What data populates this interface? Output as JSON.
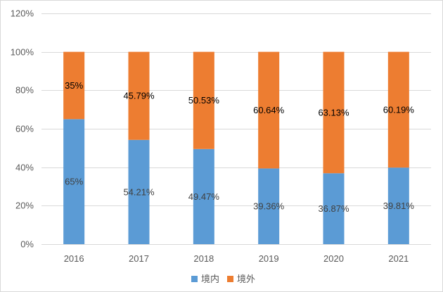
{
  "chart_data": {
    "type": "bar",
    "stacked": true,
    "title": "",
    "xlabel": "",
    "ylabel": "",
    "categories": [
      "2016",
      "2017",
      "2018",
      "2019",
      "2020",
      "2021"
    ],
    "series": [
      {
        "name": "境内",
        "color": "#5b9bd5",
        "label_color": "#404040",
        "values": [
          65,
          54.21,
          49.47,
          39.36,
          36.87,
          39.81
        ],
        "labels": [
          "65%",
          "54.21%",
          "49.47%",
          "39.36%",
          "36.87%",
          "39.81%"
        ]
      },
      {
        "name": "境外",
        "color": "#ed7d31",
        "label_color": "#000000",
        "values": [
          35,
          45.79,
          50.53,
          60.64,
          63.13,
          60.19
        ],
        "labels": [
          "35%",
          "45.79%",
          "50.53%",
          "60.64%",
          "63.13%",
          "60.19%"
        ]
      }
    ],
    "ylim": [
      0,
      120
    ],
    "yticks": [
      0,
      20,
      40,
      60,
      80,
      100,
      120
    ],
    "ytick_labels": [
      "0%",
      "20%",
      "40%",
      "60%",
      "80%",
      "100%",
      "120%"
    ],
    "grid": true,
    "legend_position": "bottom-center"
  }
}
